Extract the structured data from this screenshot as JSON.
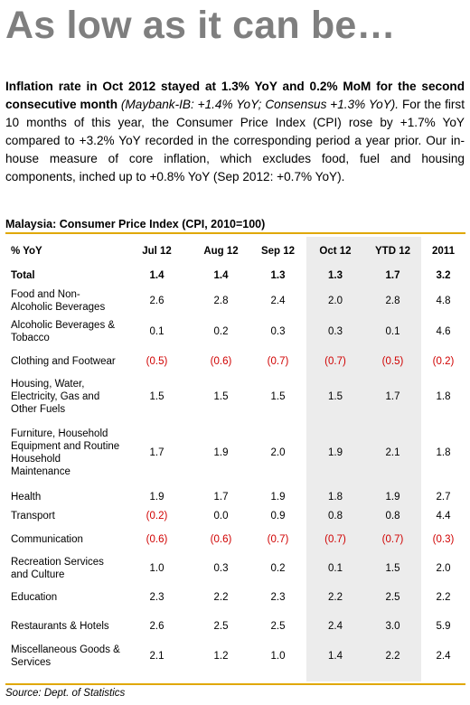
{
  "headline": "As low as it can be…",
  "intro": {
    "bold": "Inflation rate in Oct 2012 stayed at 1.3% YoY and 0.2% MoM for the second consecutive month",
    "italic": "(Maybank-IB: +1.4% YoY; Consensus +1.3% YoY).",
    "rest": "For the first 10 months of this year, the Consumer Price Index (CPI) rose by +1.7% YoY compared to +3.2% YoY recorded in the corresponding period a year prior. Our in-house measure of core inflation, which excludes food, fuel and housing components, inched up to +0.8% YoY (Sep 2012: +0.7% YoY)."
  },
  "table": {
    "title": "Malaysia: Consumer Price Index (CPI, 2010=100)",
    "headers": [
      "% YoY",
      "Jul 12",
      "Aug 12",
      "Sep 12",
      "Oct 12",
      "YTD 12",
      "2011"
    ],
    "rows": [
      {
        "label": "Total",
        "values": [
          "1.4",
          "1.4",
          "1.3",
          "1.3",
          "1.7",
          "3.2"
        ]
      },
      {
        "label": "Food and Non-Alcoholic Beverages",
        "values": [
          "2.6",
          "2.8",
          "2.4",
          "2.0",
          "2.8",
          "4.8"
        ]
      },
      {
        "label": "Alcoholic Beverages & Tobacco",
        "values": [
          "0.1",
          "0.2",
          "0.3",
          "0.3",
          "0.1",
          "4.6"
        ]
      },
      {
        "label": "Clothing and Footwear",
        "values": [
          "(0.5)",
          "(0.6)",
          "(0.7)",
          "(0.7)",
          "(0.5)",
          "(0.2)"
        ]
      },
      {
        "label": "Housing, Water, Electricity, Gas and Other Fuels",
        "values": [
          "1.5",
          "1.5",
          "1.5",
          "1.5",
          "1.7",
          "1.8"
        ]
      },
      {
        "label": "Furniture, Household Equipment and Routine Household Maintenance",
        "values": [
          "1.7",
          "1.9",
          "2.0",
          "1.9",
          "2.1",
          "1.8"
        ]
      },
      {
        "label": "Health",
        "values": [
          "1.9",
          "1.7",
          "1.9",
          "1.8",
          "1.9",
          "2.7"
        ]
      },
      {
        "label": "Transport",
        "values": [
          "(0.2)",
          "0.0",
          "0.9",
          "0.8",
          "0.8",
          "4.4"
        ]
      },
      {
        "label": "Communication",
        "values": [
          "(0.6)",
          "(0.6)",
          "(0.7)",
          "(0.7)",
          "(0.7)",
          "(0.3)"
        ]
      },
      {
        "label": "Recreation Services and Culture",
        "values": [
          "1.0",
          "0.3",
          "0.2",
          "0.1",
          "1.5",
          "2.0"
        ]
      },
      {
        "label": "Education",
        "values": [
          "2.3",
          "2.2",
          "2.3",
          "2.2",
          "2.5",
          "2.2"
        ]
      },
      {
        "label": "Restaurants & Hotels",
        "values": [
          "2.6",
          "2.5",
          "2.5",
          "2.4",
          "3.0",
          "5.9"
        ]
      },
      {
        "label": "Miscellaneous Goods & Services",
        "values": [
          "2.1",
          "1.2",
          "1.0",
          "1.4",
          "2.2",
          "2.4"
        ]
      }
    ]
  },
  "source": "Source: Dept. of Statistics",
  "colors": {
    "headline": "#7f7f7f",
    "negative": "#d00000",
    "rule": "#e0a800",
    "shade": "#ececec"
  }
}
